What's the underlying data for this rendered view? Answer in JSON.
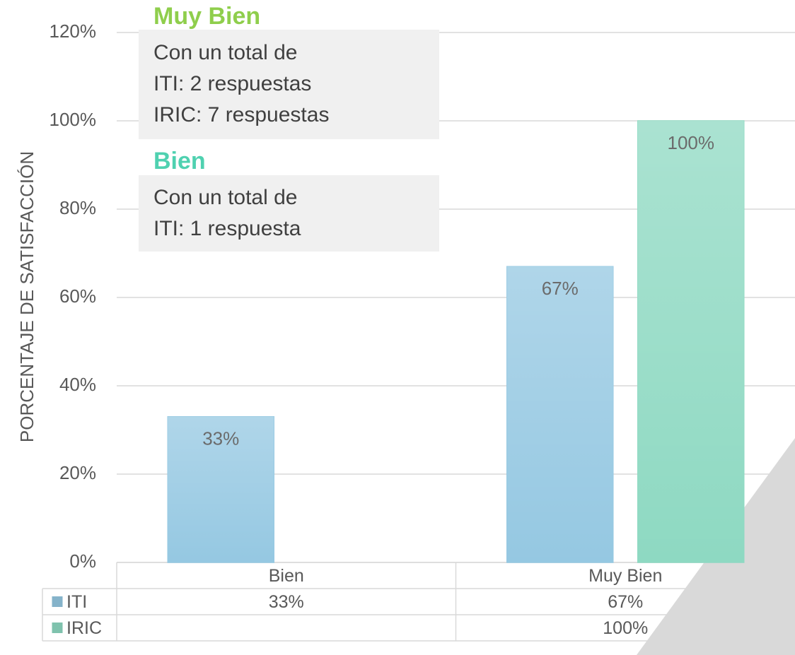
{
  "chart_data": {
    "type": "bar",
    "y_label": "PORCENTAJE DE SATISFACCIÓN",
    "categories": [
      "Bien",
      "Muy Bien"
    ],
    "series": [
      {
        "name": "ITI",
        "color": "#9dd3ee",
        "values": [
          33,
          67
        ],
        "value_labels": [
          "33%",
          "67%"
        ]
      },
      {
        "name": "IRIC",
        "color": "#95e4cc",
        "values": [
          null,
          100
        ],
        "value_labels": [
          null,
          "100%"
        ]
      }
    ],
    "ylim": [
      0,
      120
    ],
    "yticks": [
      {
        "value": 0,
        "label": "0%"
      },
      {
        "value": 20,
        "label": "20%"
      },
      {
        "value": 40,
        "label": "40%"
      },
      {
        "value": 60,
        "label": "60%"
      },
      {
        "value": 80,
        "label": "80%"
      },
      {
        "value": 100,
        "label": "100%"
      },
      {
        "value": 120,
        "label": "120%"
      }
    ],
    "grid": true,
    "annotations": [
      {
        "title": "Muy Bien",
        "color": "#8fce4c",
        "lines": [
          "Con un total de",
          "ITI: 2 respuestas",
          "IRIC: 7 respuestas"
        ]
      },
      {
        "title": "Bien",
        "color": "#4fd1b0",
        "lines": [
          "Con un total de",
          "ITI: 1 respuesta"
        ]
      }
    ]
  }
}
